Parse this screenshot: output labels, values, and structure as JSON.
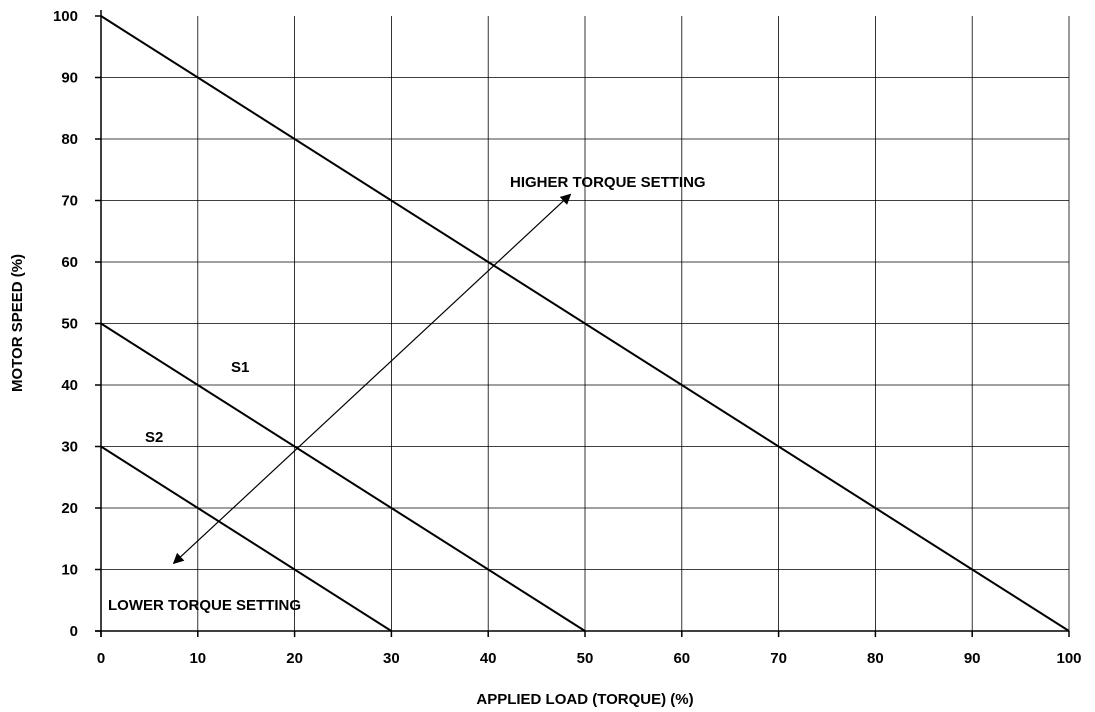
{
  "chart_data": {
    "type": "line",
    "title": "",
    "xlabel": "APPLIED LOAD (TORQUE) (%)",
    "ylabel": "MOTOR SPEED (%)",
    "xlim": [
      0,
      100
    ],
    "ylim": [
      0,
      100
    ],
    "grid": true,
    "x_ticks": [
      0,
      10,
      20,
      30,
      40,
      50,
      60,
      70,
      80,
      90,
      100
    ],
    "y_ticks": [
      0,
      10,
      20,
      30,
      40,
      50,
      60,
      70,
      80,
      90,
      100
    ],
    "series": [
      {
        "x": [
          0,
          100
        ],
        "y": [
          100,
          0
        ]
      },
      {
        "name": "S1",
        "x": [
          0,
          50
        ],
        "y": [
          50,
          0
        ]
      },
      {
        "name": "S2",
        "x": [
          0,
          30
        ],
        "y": [
          30,
          0
        ]
      }
    ],
    "annotations": {
      "higher_label": "HIGHER TORQUE SETTING",
      "lower_label": "LOWER TORQUE SETTING",
      "s1_label": "S1",
      "s2_label": "S2"
    },
    "double_arrow": {
      "from": [
        7.5,
        11
      ],
      "to": [
        48.5,
        71
      ]
    }
  }
}
